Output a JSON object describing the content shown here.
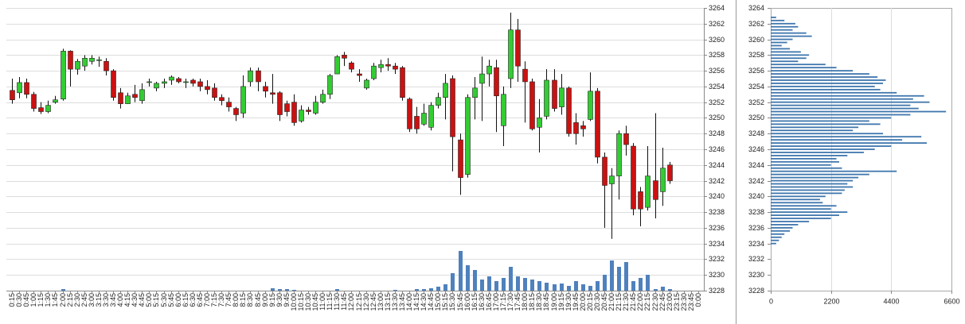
{
  "chart_data": [
    {
      "type": "candlestick",
      "categories": [
        "0:15",
        "0:30",
        "0:45",
        "1:00",
        "1:15",
        "1:30",
        "1:45",
        "2:00",
        "2:15",
        "2:30",
        "2:45",
        "3:00",
        "3:15",
        "3:30",
        "3:45",
        "4:00",
        "4:15",
        "4:30",
        "4:45",
        "5:00",
        "5:15",
        "5:30",
        "5:45",
        "6:00",
        "6:15",
        "6:30",
        "6:45",
        "7:00",
        "7:15",
        "7:30",
        "7:45",
        "8:00",
        "8:15",
        "8:30",
        "8:45",
        "9:00",
        "9:15",
        "9:30",
        "9:45",
        "10:00",
        "10:15",
        "10:30",
        "10:45",
        "11:00",
        "11:15",
        "11:30",
        "11:45",
        "12:00",
        "12:15",
        "12:30",
        "12:45",
        "13:00",
        "13:15",
        "13:30",
        "13:45",
        "14:00",
        "14:15",
        "14:30",
        "14:45",
        "15:00",
        "15:15",
        "15:30",
        "15:45",
        "16:00",
        "16:15",
        "16:30",
        "16:45",
        "17:00",
        "17:15",
        "17:30",
        "17:45",
        "18:00",
        "18:15",
        "18:30",
        "18:45",
        "19:00",
        "19:15",
        "19:30",
        "19:45",
        "20:00",
        "20:15",
        "20:30",
        "20:45",
        "21:00",
        "21:15",
        "21:30",
        "21:45",
        "22:00",
        "22:15",
        "22:30",
        "22:45",
        "23:00",
        "23:15",
        "23:30",
        "23:45",
        "0:00"
      ],
      "open": [
        3253.5,
        3253.2,
        3254.5,
        3253,
        3251.3,
        3250.8,
        3252,
        3252.4,
        3258.5,
        3256.2,
        3256.6,
        3257.2,
        3257.3,
        3257.2,
        3256,
        3253.2,
        3251.8,
        3253,
        3252.2,
        3254.6,
        3253.8,
        3254.4,
        3254.8,
        3255,
        3254.5,
        3254.8,
        3254.6,
        3254,
        3253.8,
        3252.6,
        3252,
        3251.2,
        3250.6,
        3254.6,
        3256,
        3254,
        3253.2,
        3253.2,
        3251.8,
        3252,
        3249.6,
        3251,
        3250.6,
        3252,
        3253,
        3255.6,
        3258,
        3257,
        3255.6,
        3253.8,
        3255,
        3256.4,
        3256.8,
        3256.6,
        3256.4,
        3252.4,
        3250.2,
        3249.2,
        3248.8,
        3251.6,
        3252.6,
        3255,
        3247.2,
        3242.8,
        3252.6,
        3254.4,
        3255.6,
        3256.4,
        3249,
        3255,
        3261.2,
        3256.2,
        3254.6,
        3248.8,
        3250.2,
        3254.8,
        3251.4,
        3253.8,
        3249.4,
        3249,
        3249.8,
        3253.4,
        3245,
        3241.6,
        3242.6,
        3248,
        3246.4,
        3240.6,
        3238.6,
        3242,
        3240.6,
        3244,
        null,
        null,
        null,
        null
      ],
      "high": [
        3255,
        3255.2,
        3255,
        3253.3,
        3252,
        3252.2,
        3252.8,
        3258.8,
        3258.6,
        3257.5,
        3258,
        3258,
        3257.8,
        3257.6,
        3256.2,
        3253.8,
        3253.2,
        3254.2,
        3254.4,
        3255,
        3254.6,
        3255,
        3255.4,
        3255.2,
        3255,
        3255,
        3255,
        3254.8,
        3254.4,
        3253,
        3252.6,
        3251.4,
        3255.4,
        3256.4,
        3256.4,
        3254.6,
        3255.6,
        3253.4,
        3252.2,
        3253,
        3251.6,
        3251.4,
        3252.8,
        3253.6,
        3255.6,
        3258,
        3258.4,
        3257.2,
        3256.2,
        3255,
        3257,
        3257.4,
        3257.6,
        3257,
        3256.6,
        3252.6,
        3251.4,
        3251.8,
        3252,
        3253.2,
        3255.6,
        3255.4,
        3248,
        3253,
        3255.2,
        3257.8,
        3257.4,
        3257.4,
        3254,
        3263.4,
        3262.6,
        3257.2,
        3255,
        3252.4,
        3256.2,
        3256.2,
        3255.6,
        3254,
        3250.6,
        3249.6,
        3255.8,
        3253.8,
        3245.6,
        3243.6,
        3248.4,
        3249,
        3246.8,
        3241.2,
        3246.4,
        3250.6,
        3246.2,
        3244.4,
        null,
        null,
        null,
        null
      ],
      "low": [
        3251.8,
        3252.5,
        3252.5,
        3250.8,
        3250.5,
        3250.6,
        3251.8,
        3252.2,
        3254,
        3255.5,
        3256,
        3256.8,
        3256.5,
        3255.4,
        3252.2,
        3251.2,
        3251.8,
        3252,
        3251.8,
        3254,
        3253.4,
        3253.8,
        3254.2,
        3254.4,
        3253.8,
        3254,
        3253.4,
        3253,
        3252.2,
        3251.6,
        3250.8,
        3249.6,
        3250,
        3254,
        3253.4,
        3252.6,
        3251.8,
        3249.6,
        3250.2,
        3249,
        3249.4,
        3250.4,
        3250.4,
        3251.8,
        3252.4,
        3255.6,
        3256.6,
        3255.8,
        3254.6,
        3253.6,
        3254.8,
        3255.8,
        3256,
        3255.6,
        3252.2,
        3248.2,
        3248,
        3249,
        3248.4,
        3251.2,
        3249.8,
        3243.2,
        3240.2,
        3242.4,
        3249.8,
        3249.6,
        3254,
        3248.2,
        3246.4,
        3253.8,
        3254.6,
        3249.4,
        3248.4,
        3245.6,
        3249.8,
        3250.8,
        3250.4,
        3247.6,
        3246.6,
        3247.6,
        3249.6,
        3244.2,
        3236,
        3234.6,
        3239.6,
        3245.2,
        3237.6,
        3236.2,
        3238.2,
        3237.2,
        3238.8,
        3241.6,
        null,
        null,
        null,
        null
      ],
      "close": [
        3252.3,
        3254.5,
        3253,
        3251.2,
        3250.8,
        3251.6,
        3252.3,
        3258.5,
        3256.2,
        3257.2,
        3257.6,
        3257.6,
        3257.4,
        3256,
        3252.6,
        3251.8,
        3252.8,
        3252.6,
        3253.6,
        3254.6,
        3254.4,
        3254.6,
        3255.2,
        3254.6,
        3254.6,
        3254.4,
        3254,
        3253.6,
        3252.6,
        3252.2,
        3251.4,
        3250.4,
        3254,
        3256,
        3254.6,
        3253.4,
        3253,
        3250.4,
        3250.8,
        3249.4,
        3251,
        3250.8,
        3252,
        3253,
        3255.4,
        3257.8,
        3257.6,
        3256.2,
        3255.4,
        3254.8,
        3256.6,
        3256.8,
        3256.6,
        3256.2,
        3252.6,
        3248.6,
        3248.6,
        3250.6,
        3251.6,
        3252.6,
        3254.4,
        3247.6,
        3242.4,
        3252.6,
        3253.8,
        3255.6,
        3256.6,
        3252.8,
        3253,
        3261.2,
        3256.6,
        3254.6,
        3248.6,
        3250,
        3254.8,
        3251.2,
        3253.8,
        3248,
        3248,
        3248.6,
        3253.4,
        3245,
        3241.4,
        3242.6,
        3248,
        3246.6,
        3238.4,
        3238.4,
        3242.6,
        3239.6,
        3243.6,
        3242,
        null,
        null,
        null,
        null
      ],
      "volume": [
        0,
        0,
        0,
        0,
        0,
        0,
        0,
        2,
        0,
        0,
        0,
        0,
        0,
        0,
        0,
        0,
        0,
        0,
        0,
        0,
        0,
        0,
        0,
        0,
        0,
        0,
        0,
        0,
        0,
        0,
        0,
        0,
        0,
        0,
        0,
        0,
        3,
        2,
        2,
        1,
        0,
        0,
        0,
        0,
        0,
        2,
        0,
        0,
        0,
        0,
        0,
        0,
        0,
        1,
        0,
        0,
        2,
        2,
        3,
        5,
        8,
        22,
        50,
        32,
        26,
        14,
        18,
        12,
        16,
        30,
        18,
        16,
        14,
        12,
        10,
        8,
        9,
        6,
        12,
        8,
        6,
        12,
        20,
        38,
        30,
        36,
        12,
        16,
        20,
        2,
        5,
        2,
        null,
        null,
        null,
        null
      ],
      "volume_lim": [
        0,
        50
      ],
      "ylim": [
        3228,
        3264
      ],
      "yticks": [
        3228,
        3230,
        3232,
        3234,
        3236,
        3238,
        3240,
        3242,
        3244,
        3246,
        3248,
        3250,
        3252,
        3254,
        3256,
        3258,
        3260,
        3262,
        3264
      ],
      "up_color": "#33cc33",
      "down_color": "#cc1111",
      "volume_color": "#4f81bd",
      "grid": true
    },
    {
      "type": "hbar",
      "y": [
        3262.8,
        3262.4,
        3262,
        3261.6,
        3261.2,
        3260.8,
        3260.4,
        3260,
        3259.6,
        3259.2,
        3258.8,
        3258.4,
        3258,
        3257.6,
        3257.2,
        3256.8,
        3256.4,
        3256,
        3255.6,
        3255.2,
        3254.8,
        3254.4,
        3254,
        3253.6,
        3253.2,
        3252.8,
        3252.4,
        3252,
        3251.6,
        3251.2,
        3250.8,
        3250.4,
        3250,
        3249.6,
        3249.2,
        3248.8,
        3248.4,
        3248,
        3247.6,
        3247.2,
        3246.8,
        3246.4,
        3246,
        3245.6,
        3245.2,
        3244.8,
        3244.4,
        3244,
        3243.6,
        3243.2,
        3242.8,
        3242.4,
        3242,
        3241.6,
        3241.2,
        3240.8,
        3240.4,
        3240,
        3239.6,
        3239.2,
        3238.8,
        3238.4,
        3238,
        3237.6,
        3237.2,
        3236.8,
        3236.4,
        3236,
        3235.6,
        3235.2,
        3234.8,
        3234.4,
        3234
      ],
      "values": [
        200,
        500,
        900,
        1000,
        800,
        1300,
        1500,
        800,
        600,
        400,
        700,
        1100,
        1400,
        1300,
        1000,
        2000,
        2400,
        3000,
        3600,
        3900,
        4200,
        4100,
        3800,
        4000,
        4600,
        5600,
        5200,
        5800,
        5100,
        5400,
        6400,
        5100,
        4400,
        3600,
        4000,
        3200,
        3000,
        4100,
        5500,
        4800,
        5700,
        4400,
        3800,
        3400,
        2800,
        2400,
        2500,
        2200,
        2600,
        4600,
        3600,
        3200,
        3000,
        2800,
        3000,
        2700,
        2600,
        2000,
        1800,
        1900,
        2400,
        2200,
        2800,
        2500,
        2200,
        1400,
        1000,
        800,
        700,
        500,
        400,
        300,
        200
      ],
      "xlim": [
        0,
        6600
      ],
      "xticks": [
        0,
        2200,
        4400,
        6600
      ],
      "ylim": [
        3228,
        3264
      ],
      "yticks": [
        3228,
        3230,
        3232,
        3234,
        3236,
        3238,
        3240,
        3242,
        3244,
        3246,
        3248,
        3250,
        3252,
        3254,
        3256,
        3258,
        3260,
        3262,
        3264
      ],
      "color": "#3f76ad",
      "grid": true
    }
  ]
}
